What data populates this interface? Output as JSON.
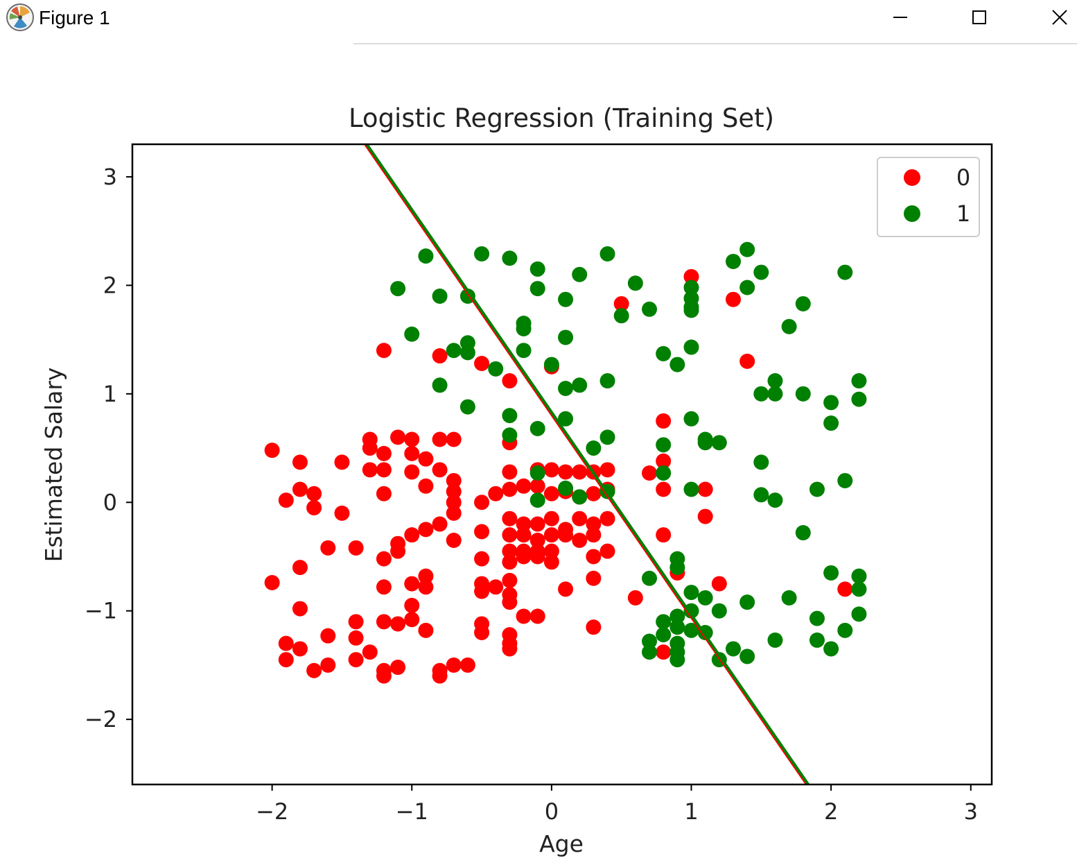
{
  "window": {
    "title": "Figure 1",
    "buttons": {
      "minimize": "minimize-icon",
      "maximize": "maximize-icon",
      "close": "close-icon"
    }
  },
  "chart_data": {
    "type": "scatter",
    "title": "Logistic Regression (Training Set)",
    "xlabel": "Age",
    "ylabel": "Estimated Salary",
    "xlim": [
      -3.0,
      3.15
    ],
    "ylim": [
      -2.6,
      3.3
    ],
    "xticks": [
      -2,
      -1,
      0,
      1,
      2,
      3
    ],
    "yticks": [
      -2,
      -1,
      0,
      1,
      2,
      3
    ],
    "grid": false,
    "legend_position": "top-right",
    "series": [
      {
        "name": "0",
        "color": "#ff0000",
        "points": [
          [
            -2.0,
            0.48
          ],
          [
            -1.8,
            0.37
          ],
          [
            -1.5,
            0.37
          ],
          [
            -1.9,
            0.02
          ],
          [
            -1.8,
            0.12
          ],
          [
            -1.7,
            0.08
          ],
          [
            -1.7,
            -0.05
          ],
          [
            -1.5,
            -0.1
          ],
          [
            -1.6,
            -0.42
          ],
          [
            -1.4,
            -0.42
          ],
          [
            -1.8,
            -0.6
          ],
          [
            -2.0,
            -0.74
          ],
          [
            -1.8,
            -0.98
          ],
          [
            -1.4,
            -1.1
          ],
          [
            -1.2,
            -1.1
          ],
          [
            -1.1,
            -1.12
          ],
          [
            -1.0,
            -1.08
          ],
          [
            -0.9,
            -1.18
          ],
          [
            -1.0,
            -0.95
          ],
          [
            -1.9,
            -1.3
          ],
          [
            -1.9,
            -1.45
          ],
          [
            -1.8,
            -1.35
          ],
          [
            -1.7,
            -1.55
          ],
          [
            -1.6,
            -1.5
          ],
          [
            -1.6,
            -1.23
          ],
          [
            -1.4,
            -1.25
          ],
          [
            -1.4,
            -1.45
          ],
          [
            -1.3,
            -1.38
          ],
          [
            -1.2,
            -1.55
          ],
          [
            -1.2,
            -1.6
          ],
          [
            -1.1,
            -1.52
          ],
          [
            -0.8,
            -1.55
          ],
          [
            -0.8,
            -1.6
          ],
          [
            -0.7,
            -1.5
          ],
          [
            -0.6,
            -1.5
          ],
          [
            -1.3,
            0.58
          ],
          [
            -1.3,
            0.5
          ],
          [
            -1.3,
            0.3
          ],
          [
            -1.2,
            0.45
          ],
          [
            -1.2,
            0.3
          ],
          [
            -1.1,
            0.6
          ],
          [
            -1.0,
            0.58
          ],
          [
            -1.0,
            0.45
          ],
          [
            -1.0,
            0.28
          ],
          [
            -0.9,
            0.4
          ],
          [
            -0.8,
            0.3
          ],
          [
            -0.8,
            0.58
          ],
          [
            -0.7,
            0.58
          ],
          [
            -0.9,
            0.15
          ],
          [
            -1.2,
            0.08
          ],
          [
            -0.7,
            0.2
          ],
          [
            -0.7,
            0.1
          ],
          [
            -0.7,
            0.0
          ],
          [
            -0.7,
            -0.1
          ],
          [
            -0.8,
            -0.2
          ],
          [
            -0.9,
            -0.25
          ],
          [
            -1.0,
            -0.3
          ],
          [
            -1.1,
            -0.38
          ],
          [
            -1.1,
            -0.45
          ],
          [
            -1.2,
            -0.52
          ],
          [
            -0.7,
            -0.35
          ],
          [
            -1.2,
            -0.78
          ],
          [
            -1.0,
            -0.75
          ],
          [
            -0.9,
            -0.68
          ],
          [
            -0.9,
            -0.78
          ],
          [
            -1.2,
            1.4
          ],
          [
            -0.8,
            1.35
          ],
          [
            -0.5,
            1.28
          ],
          [
            -0.3,
            1.12
          ],
          [
            0.0,
            1.25
          ],
          [
            -0.3,
            0.55
          ],
          [
            -0.5,
            0.0
          ],
          [
            -0.4,
            0.08
          ],
          [
            -0.3,
            0.12
          ],
          [
            -0.2,
            0.15
          ],
          [
            -0.1,
            0.15
          ],
          [
            -0.3,
            0.28
          ],
          [
            -0.1,
            0.3
          ],
          [
            0.0,
            0.3
          ],
          [
            0.1,
            0.28
          ],
          [
            0.2,
            0.28
          ],
          [
            0.3,
            0.28
          ],
          [
            0.4,
            0.3
          ],
          [
            0.0,
            0.08
          ],
          [
            0.1,
            0.1
          ],
          [
            0.2,
            0.05
          ],
          [
            0.3,
            0.08
          ],
          [
            0.4,
            0.12
          ],
          [
            -0.3,
            -0.15
          ],
          [
            -0.2,
            -0.2
          ],
          [
            -0.1,
            -0.2
          ],
          [
            0.0,
            -0.15
          ],
          [
            0.1,
            -0.25
          ],
          [
            0.2,
            -0.15
          ],
          [
            0.3,
            -0.2
          ],
          [
            0.4,
            -0.15
          ],
          [
            -0.3,
            -0.3
          ],
          [
            -0.2,
            -0.3
          ],
          [
            -0.1,
            -0.35
          ],
          [
            0.0,
            -0.3
          ],
          [
            0.1,
            -0.3
          ],
          [
            0.2,
            -0.35
          ],
          [
            0.3,
            -0.3
          ],
          [
            -0.3,
            -0.45
          ],
          [
            -0.2,
            -0.45
          ],
          [
            -0.1,
            -0.45
          ],
          [
            0.0,
            -0.45
          ],
          [
            0.3,
            -0.5
          ],
          [
            0.4,
            -0.45
          ],
          [
            -0.3,
            -0.55
          ],
          [
            -0.2,
            -0.5
          ],
          [
            -0.1,
            -0.5
          ],
          [
            0.0,
            -0.55
          ],
          [
            -0.5,
            -0.27
          ],
          [
            -0.5,
            -0.52
          ],
          [
            -0.5,
            -0.75
          ],
          [
            -0.5,
            -0.82
          ],
          [
            -0.4,
            -0.78
          ],
          [
            -0.3,
            -0.72
          ],
          [
            -0.3,
            -0.85
          ],
          [
            -0.3,
            -0.92
          ],
          [
            -0.2,
            -1.05
          ],
          [
            -0.1,
            -1.05
          ],
          [
            -0.5,
            -1.12
          ],
          [
            -0.5,
            -1.2
          ],
          [
            -0.3,
            -1.22
          ],
          [
            -0.3,
            -1.3
          ],
          [
            -0.3,
            -1.35
          ],
          [
            0.1,
            -0.8
          ],
          [
            0.3,
            -0.7
          ],
          [
            0.3,
            -1.15
          ],
          [
            0.6,
            -0.88
          ],
          [
            0.8,
            0.75
          ],
          [
            0.8,
            0.38
          ],
          [
            0.7,
            0.27
          ],
          [
            0.8,
            0.12
          ],
          [
            0.8,
            -0.3
          ],
          [
            0.9,
            -0.65
          ],
          [
            1.1,
            0.12
          ],
          [
            1.1,
            -0.13
          ],
          [
            1.2,
            -0.75
          ],
          [
            0.5,
            1.83
          ],
          [
            1.0,
            2.08
          ],
          [
            1.3,
            1.87
          ],
          [
            1.4,
            1.3
          ],
          [
            2.1,
            -0.8
          ],
          [
            0.8,
            -1.38
          ]
        ]
      },
      {
        "name": "1",
        "color": "#008000",
        "points": [
          [
            -0.9,
            2.27
          ],
          [
            -0.5,
            2.29
          ],
          [
            -0.3,
            2.25
          ],
          [
            -0.1,
            2.15
          ],
          [
            0.4,
            2.29
          ],
          [
            -1.1,
            1.97
          ],
          [
            -0.8,
            1.9
          ],
          [
            -0.6,
            1.9
          ],
          [
            -0.1,
            1.97
          ],
          [
            0.1,
            1.87
          ],
          [
            0.2,
            2.1
          ],
          [
            0.6,
            2.02
          ],
          [
            -1.0,
            1.55
          ],
          [
            -0.7,
            1.4
          ],
          [
            -0.6,
            1.47
          ],
          [
            -0.6,
            1.38
          ],
          [
            -0.4,
            1.23
          ],
          [
            -0.2,
            1.65
          ],
          [
            -0.2,
            1.6
          ],
          [
            -0.2,
            1.4
          ],
          [
            0.1,
            1.52
          ],
          [
            0.0,
            1.27
          ],
          [
            -0.8,
            1.08
          ],
          [
            -0.6,
            0.88
          ],
          [
            0.1,
            1.05
          ],
          [
            0.2,
            1.08
          ],
          [
            0.4,
            1.12
          ],
          [
            0.5,
            1.72
          ],
          [
            0.7,
            1.78
          ],
          [
            1.0,
            1.98
          ],
          [
            1.0,
            1.88
          ],
          [
            1.0,
            1.8
          ],
          [
            1.0,
            1.77
          ],
          [
            1.3,
            2.22
          ],
          [
            1.4,
            2.33
          ],
          [
            1.5,
            2.12
          ],
          [
            1.4,
            1.98
          ],
          [
            2.1,
            2.12
          ],
          [
            1.8,
            1.83
          ],
          [
            1.7,
            1.62
          ],
          [
            0.8,
            1.37
          ],
          [
            0.9,
            1.27
          ],
          [
            1.0,
            1.43
          ],
          [
            1.6,
            1.12
          ],
          [
            1.5,
            1.0
          ],
          [
            1.6,
            1.0
          ],
          [
            1.8,
            1.0
          ],
          [
            2.0,
            0.92
          ],
          [
            2.2,
            1.12
          ],
          [
            2.2,
            0.95
          ],
          [
            2.0,
            0.73
          ],
          [
            -0.3,
            0.8
          ],
          [
            -0.3,
            0.62
          ],
          [
            -0.1,
            0.68
          ],
          [
            0.1,
            0.77
          ],
          [
            0.3,
            0.5
          ],
          [
            0.4,
            0.6
          ],
          [
            0.8,
            0.53
          ],
          [
            1.0,
            0.77
          ],
          [
            1.1,
            0.58
          ],
          [
            1.1,
            0.55
          ],
          [
            1.2,
            0.55
          ],
          [
            1.5,
            0.37
          ],
          [
            -0.1,
            0.27
          ],
          [
            -0.1,
            0.02
          ],
          [
            0.1,
            0.13
          ],
          [
            0.2,
            0.05
          ],
          [
            0.4,
            0.1
          ],
          [
            0.8,
            0.27
          ],
          [
            1.0,
            0.12
          ],
          [
            1.5,
            0.07
          ],
          [
            1.6,
            0.02
          ],
          [
            1.9,
            0.12
          ],
          [
            2.1,
            0.2
          ],
          [
            1.8,
            -0.28
          ],
          [
            0.9,
            -0.52
          ],
          [
            0.9,
            -0.6
          ],
          [
            0.7,
            -0.7
          ],
          [
            1.0,
            -0.83
          ],
          [
            1.1,
            -0.88
          ],
          [
            1.2,
            -1.0
          ],
          [
            1.4,
            -0.92
          ],
          [
            1.7,
            -0.88
          ],
          [
            2.0,
            -0.65
          ],
          [
            2.2,
            -0.68
          ],
          [
            2.2,
            -0.8
          ],
          [
            1.9,
            -1.07
          ],
          [
            2.2,
            -1.03
          ],
          [
            2.1,
            -1.18
          ],
          [
            0.8,
            -1.1
          ],
          [
            0.9,
            -1.05
          ],
          [
            0.9,
            -1.15
          ],
          [
            1.0,
            -1.0
          ],
          [
            1.0,
            -1.18
          ],
          [
            1.1,
            -1.2
          ],
          [
            0.7,
            -1.28
          ],
          [
            0.7,
            -1.38
          ],
          [
            0.8,
            -1.22
          ],
          [
            0.9,
            -1.3
          ],
          [
            0.9,
            -1.38
          ],
          [
            0.9,
            -1.45
          ],
          [
            1.2,
            -1.45
          ],
          [
            1.3,
            -1.35
          ],
          [
            1.4,
            -1.42
          ],
          [
            1.6,
            -1.27
          ],
          [
            1.9,
            -1.27
          ],
          [
            2.0,
            -1.35
          ]
        ]
      }
    ],
    "decision_boundary": {
      "x": [
        -1.33,
        1.83
      ],
      "y": [
        3.3,
        -2.6
      ],
      "colors": [
        "#ff0000",
        "#008000"
      ]
    }
  }
}
